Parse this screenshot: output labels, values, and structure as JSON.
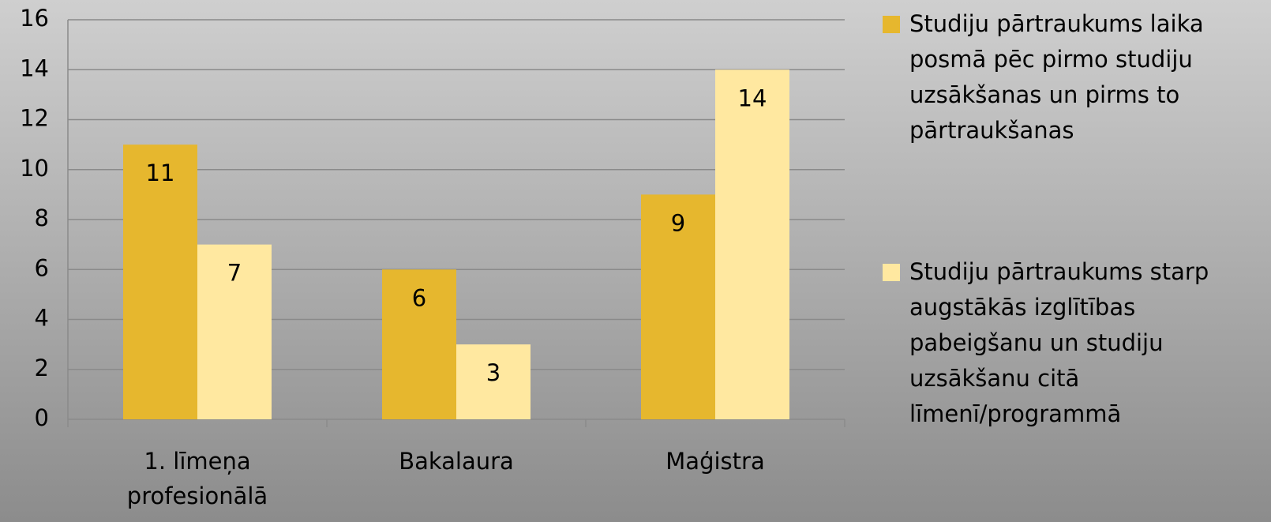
{
  "chart_data": {
    "type": "bar",
    "categories": [
      "1. līmeņa profesionālā",
      "Bakalaura",
      "Maģistra"
    ],
    "series": [
      {
        "name": "Studiju pārtraukums laika posmā pēc pirmo studiju uzsākšanas un pirms to pārtraukšanas",
        "color": "#e6b72e",
        "values": [
          11,
          6,
          9
        ]
      },
      {
        "name": "Studiju pārtraukums starp augstākās izglītības pabeigšanu un studiju uzsākšanu citā līmenī/programmā",
        "color": "#ffe8a0",
        "values": [
          7,
          3,
          14
        ]
      }
    ],
    "ylim": [
      0,
      16
    ],
    "yticks": [
      0,
      2,
      4,
      6,
      8,
      10,
      12,
      14,
      16
    ],
    "grid": true,
    "legend": "right"
  }
}
